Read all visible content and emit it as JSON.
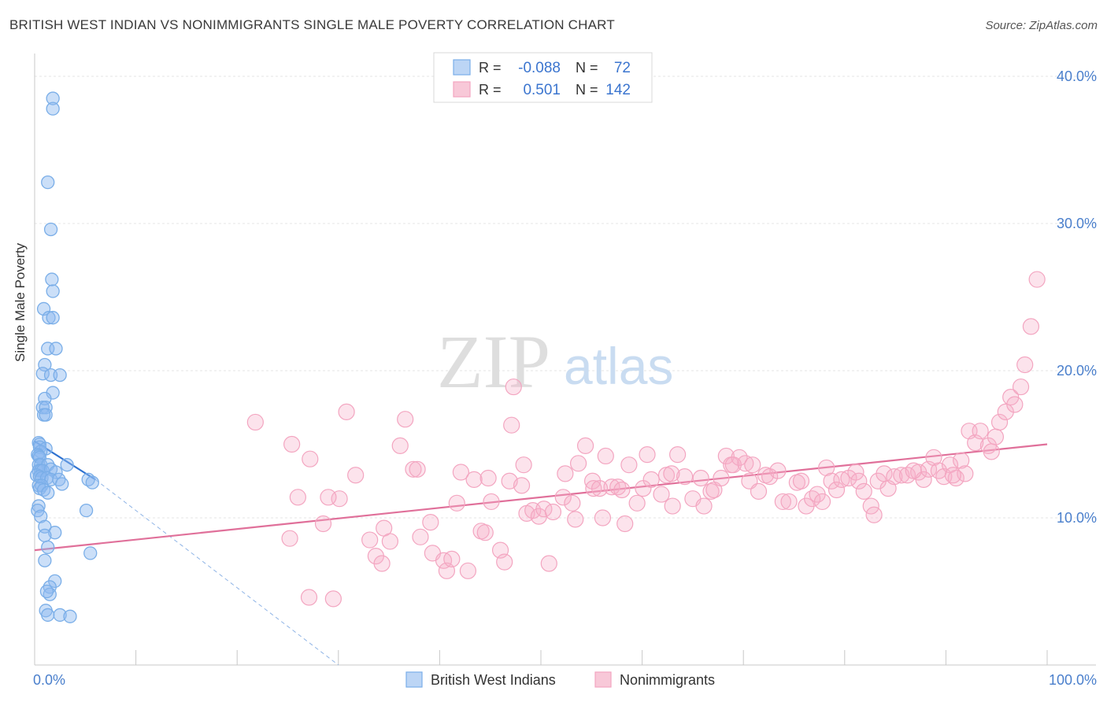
{
  "title": "BRITISH WEST INDIAN VS NONIMMIGRANTS SINGLE MALE POVERTY CORRELATION CHART",
  "source": "Source: ZipAtlas.com",
  "watermark": {
    "zip": "ZIP",
    "atlas": "atlas"
  },
  "legend_top": {
    "rows": [
      {
        "r_label": "R =",
        "r_value": "-0.088",
        "n_label": "N =",
        "n_value": "72"
      },
      {
        "r_label": "R =",
        "r_value": "0.501",
        "n_label": "N =",
        "n_value": "142"
      }
    ]
  },
  "chart_data": {
    "type": "scatter",
    "title": "BRITISH WEST INDIAN VS NONIMMIGRANTS SINGLE MALE POVERTY CORRELATION CHART",
    "xlabel": "",
    "ylabel": "Single Male Poverty",
    "xlim": [
      0,
      100
    ],
    "ylim": [
      0,
      40
    ],
    "x_tick_labels": [
      "0.0%",
      "100.0%"
    ],
    "y_ticks": [
      10,
      20,
      30,
      40
    ],
    "y_tick_labels": [
      "10.0%",
      "20.0%",
      "30.0%",
      "40.0%"
    ],
    "grid": true,
    "legend_position": "bottom",
    "colors": {
      "blue": "#7aaee8",
      "blue_line": "#2f72d0",
      "pink": "#f3a5c0",
      "pink_line": "#e0709a",
      "tick_text": "#4a7fcc"
    },
    "series": [
      {
        "name": "British West Indians",
        "color": "#7aaee8",
        "trend": {
          "x": [
            0,
            6
          ],
          "y": [
            15.2,
            12.6
          ],
          "dashed_to": [
            30,
            0
          ]
        },
        "points": [
          [
            1.8,
            38.5
          ],
          [
            1.8,
            37.8
          ],
          [
            1.3,
            32.8
          ],
          [
            1.6,
            29.6
          ],
          [
            1.7,
            26.2
          ],
          [
            1.8,
            25.4
          ],
          [
            0.9,
            24.2
          ],
          [
            1.4,
            23.6
          ],
          [
            1.8,
            23.6
          ],
          [
            1.3,
            21.5
          ],
          [
            2.1,
            21.5
          ],
          [
            1.0,
            20.4
          ],
          [
            0.8,
            19.8
          ],
          [
            1.6,
            19.7
          ],
          [
            2.5,
            19.7
          ],
          [
            1.8,
            18.5
          ],
          [
            1.0,
            18.1
          ],
          [
            0.8,
            17.5
          ],
          [
            1.1,
            17.5
          ],
          [
            0.9,
            17.0
          ],
          [
            1.1,
            17.0
          ],
          [
            0.4,
            15.1
          ],
          [
            0.5,
            15.0
          ],
          [
            0.5,
            14.8
          ],
          [
            1.1,
            14.7
          ],
          [
            0.6,
            14.5
          ],
          [
            0.3,
            14.3
          ],
          [
            0.4,
            14.2
          ],
          [
            0.5,
            14.1
          ],
          [
            0.4,
            13.6
          ],
          [
            0.6,
            13.6
          ],
          [
            1.3,
            13.6
          ],
          [
            3.2,
            13.6
          ],
          [
            0.4,
            13.2
          ],
          [
            0.6,
            13.2
          ],
          [
            0.8,
            13.2
          ],
          [
            1.6,
            13.3
          ],
          [
            2.1,
            13.1
          ],
          [
            0.2,
            12.9
          ],
          [
            0.5,
            12.8
          ],
          [
            0.7,
            12.7
          ],
          [
            1.2,
            12.7
          ],
          [
            1.6,
            12.6
          ],
          [
            2.4,
            12.6
          ],
          [
            5.3,
            12.6
          ],
          [
            5.7,
            12.4
          ],
          [
            0.4,
            12.2
          ],
          [
            0.7,
            12.2
          ],
          [
            2.7,
            12.3
          ],
          [
            0.5,
            12.0
          ],
          [
            0.9,
            11.9
          ],
          [
            1.3,
            11.7
          ],
          [
            0.4,
            10.8
          ],
          [
            0.3,
            10.5
          ],
          [
            5.1,
            10.5
          ],
          [
            0.6,
            10.1
          ],
          [
            1.0,
            9.4
          ],
          [
            2.0,
            9.0
          ],
          [
            1.0,
            8.8
          ],
          [
            1.3,
            8.0
          ],
          [
            5.5,
            7.6
          ],
          [
            1.0,
            7.1
          ],
          [
            2.0,
            5.7
          ],
          [
            1.5,
            5.3
          ],
          [
            1.5,
            4.8
          ],
          [
            1.1,
            3.7
          ],
          [
            1.3,
            3.4
          ],
          [
            2.5,
            3.4
          ],
          [
            3.5,
            3.3
          ],
          [
            1.2,
            5.0
          ]
        ]
      },
      {
        "name": "Nonimmigrants",
        "color": "#f3a5c0",
        "trend": {
          "x": [
            0,
            100
          ],
          "y": [
            7.8,
            15.0
          ]
        },
        "points": [
          [
            21.8,
            16.5
          ],
          [
            25.4,
            15.0
          ],
          [
            27.2,
            14.0
          ],
          [
            26.0,
            11.4
          ],
          [
            25.2,
            8.6
          ],
          [
            27.1,
            4.6
          ],
          [
            28.5,
            9.6
          ],
          [
            30.1,
            11.3
          ],
          [
            29.0,
            11.4
          ],
          [
            29.5,
            4.5
          ],
          [
            30.8,
            17.2
          ],
          [
            31.7,
            12.9
          ],
          [
            33.1,
            8.5
          ],
          [
            33.7,
            7.4
          ],
          [
            34.5,
            9.3
          ],
          [
            34.3,
            6.9
          ],
          [
            35.1,
            8.4
          ],
          [
            36.1,
            14.9
          ],
          [
            36.6,
            16.7
          ],
          [
            37.4,
            13.3
          ],
          [
            38.1,
            8.7
          ],
          [
            39.1,
            9.7
          ],
          [
            39.3,
            7.6
          ],
          [
            40.4,
            7.1
          ],
          [
            40.7,
            6.4
          ],
          [
            41.2,
            7.2
          ],
          [
            41.7,
            11.0
          ],
          [
            42.1,
            13.1
          ],
          [
            42.8,
            6.4
          ],
          [
            43.4,
            12.6
          ],
          [
            44.1,
            9.1
          ],
          [
            44.5,
            9.0
          ],
          [
            44.8,
            12.7
          ],
          [
            45.1,
            11.1
          ],
          [
            46.0,
            7.8
          ],
          [
            46.4,
            7.0
          ],
          [
            46.9,
            12.5
          ],
          [
            47.1,
            16.3
          ],
          [
            47.3,
            18.9
          ],
          [
            48.1,
            12.2
          ],
          [
            48.3,
            13.6
          ],
          [
            48.6,
            10.3
          ],
          [
            49.2,
            10.5
          ],
          [
            49.8,
            10.1
          ],
          [
            50.3,
            10.6
          ],
          [
            50.8,
            6.9
          ],
          [
            51.2,
            10.4
          ],
          [
            52.2,
            11.4
          ],
          [
            52.4,
            13.0
          ],
          [
            53.1,
            11.0
          ],
          [
            53.7,
            13.7
          ],
          [
            54.4,
            14.9
          ],
          [
            55.1,
            12.5
          ],
          [
            55.2,
            12.0
          ],
          [
            55.8,
            12.0
          ],
          [
            56.1,
            10.0
          ],
          [
            56.4,
            14.2
          ],
          [
            57.0,
            12.1
          ],
          [
            57.6,
            12.1
          ],
          [
            58.0,
            11.9
          ],
          [
            58.3,
            9.6
          ],
          [
            58.7,
            13.6
          ],
          [
            59.5,
            11.0
          ],
          [
            60.1,
            12.0
          ],
          [
            60.5,
            14.3
          ],
          [
            60.9,
            12.6
          ],
          [
            61.9,
            11.6
          ],
          [
            62.4,
            12.9
          ],
          [
            63.0,
            10.8
          ],
          [
            63.5,
            14.3
          ],
          [
            64.2,
            12.8
          ],
          [
            65.0,
            11.3
          ],
          [
            65.8,
            12.7
          ],
          [
            66.1,
            10.8
          ],
          [
            66.8,
            11.8
          ],
          [
            67.1,
            11.9
          ],
          [
            67.8,
            12.7
          ],
          [
            68.3,
            14.2
          ],
          [
            68.8,
            13.6
          ],
          [
            69.6,
            14.1
          ],
          [
            70.2,
            13.7
          ],
          [
            70.6,
            12.5
          ],
          [
            70.9,
            13.6
          ],
          [
            71.5,
            11.8
          ],
          [
            72.2,
            12.9
          ],
          [
            72.6,
            12.8
          ],
          [
            73.4,
            13.2
          ],
          [
            73.9,
            11.1
          ],
          [
            74.5,
            11.1
          ],
          [
            75.3,
            12.4
          ],
          [
            75.7,
            12.5
          ],
          [
            76.2,
            10.8
          ],
          [
            76.8,
            11.3
          ],
          [
            77.3,
            11.6
          ],
          [
            77.8,
            11.1
          ],
          [
            78.2,
            13.4
          ],
          [
            78.7,
            12.5
          ],
          [
            79.2,
            11.9
          ],
          [
            79.7,
            12.6
          ],
          [
            80.4,
            12.7
          ],
          [
            81.1,
            13.1
          ],
          [
            81.4,
            12.5
          ],
          [
            81.9,
            11.8
          ],
          [
            82.6,
            10.8
          ],
          [
            82.9,
            10.2
          ],
          [
            83.3,
            12.5
          ],
          [
            83.9,
            13.0
          ],
          [
            84.3,
            12.0
          ],
          [
            84.9,
            12.8
          ],
          [
            85.6,
            12.9
          ],
          [
            86.2,
            12.9
          ],
          [
            87.3,
            13.1
          ],
          [
            87.8,
            12.6
          ],
          [
            88.3,
            13.3
          ],
          [
            88.8,
            14.1
          ],
          [
            89.3,
            13.2
          ],
          [
            89.8,
            12.8
          ],
          [
            90.4,
            13.6
          ],
          [
            91.0,
            12.7
          ],
          [
            91.5,
            13.9
          ],
          [
            91.9,
            13.0
          ],
          [
            92.3,
            15.9
          ],
          [
            92.9,
            15.1
          ],
          [
            93.4,
            15.9
          ],
          [
            94.2,
            14.9
          ],
          [
            94.9,
            15.5
          ],
          [
            95.3,
            16.5
          ],
          [
            95.9,
            17.2
          ],
          [
            96.4,
            18.2
          ],
          [
            96.8,
            17.7
          ],
          [
            97.4,
            18.9
          ],
          [
            97.8,
            20.4
          ],
          [
            98.4,
            23.0
          ],
          [
            99.0,
            26.2
          ],
          [
            94.5,
            14.5
          ],
          [
            90.7,
            12.9
          ],
          [
            86.8,
            13.2
          ],
          [
            69.0,
            13.6
          ],
          [
            62.9,
            13.0
          ],
          [
            37.8,
            13.3
          ],
          [
            53.4,
            9.9
          ]
        ]
      }
    ]
  },
  "legend_bottom": [
    {
      "label": "British West Indians"
    },
    {
      "label": "Nonimmigrants"
    }
  ]
}
